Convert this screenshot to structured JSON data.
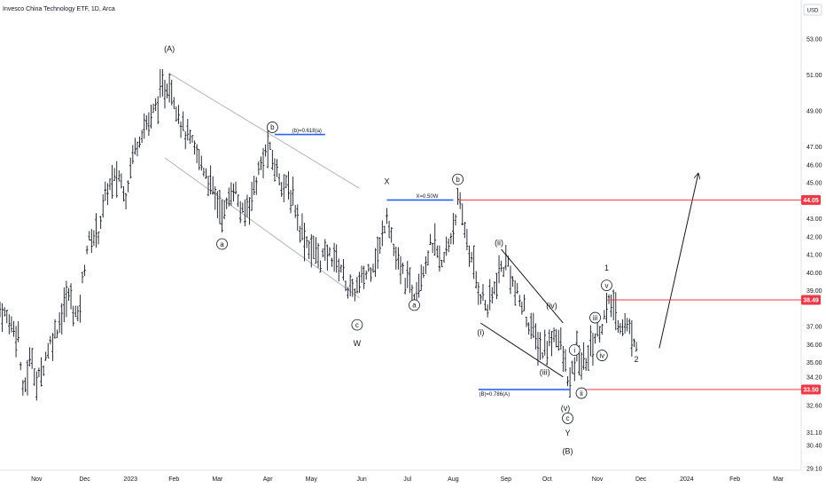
{
  "header": {
    "title": "Invesco China Technology ETF, 1D, Arca"
  },
  "currency": "USD",
  "chart_data": {
    "type": "ohlc",
    "title": "Invesco China Technology ETF, 1D, Arca",
    "ylim": [
      29.5,
      54.0
    ],
    "y_ticks": [
      {
        "v": 53.0,
        "label": "53.00"
      },
      {
        "v": 51.0,
        "label": "51.00"
      },
      {
        "v": 49.0,
        "label": "49.00"
      },
      {
        "v": 47.0,
        "label": "47.00"
      },
      {
        "v": 46.0,
        "label": "46.00"
      },
      {
        "v": 45.0,
        "label": "45.00"
      },
      {
        "v": 43.0,
        "label": "43.00"
      },
      {
        "v": 42.0,
        "label": "42.00"
      },
      {
        "v": 41.0,
        "label": "41.00"
      },
      {
        "v": 40.0,
        "label": "40.00"
      },
      {
        "v": 39.0,
        "label": "39.00"
      },
      {
        "v": 37.0,
        "label": "37.00"
      },
      {
        "v": 36.0,
        "label": "36.00"
      },
      {
        "v": 35.0,
        "label": "35.00"
      },
      {
        "v": 34.2,
        "label": "34.20"
      },
      {
        "v": 32.6,
        "label": "32.60"
      },
      {
        "v": 31.1,
        "label": "31.10"
      },
      {
        "v": 30.4,
        "label": "30.40"
      },
      {
        "v": 29.1,
        "label": "29.10"
      }
    ],
    "x_ticks": [
      {
        "t": 0,
        "label": "Nov"
      },
      {
        "t": 21,
        "label": "Dec"
      },
      {
        "t": 41,
        "label": "2023"
      },
      {
        "t": 60,
        "label": "Feb"
      },
      {
        "t": 79,
        "label": "Mar"
      },
      {
        "t": 101,
        "label": "Apr"
      },
      {
        "t": 120,
        "label": "May"
      },
      {
        "t": 142,
        "label": "Jun"
      },
      {
        "t": 162,
        "label": "Jul"
      },
      {
        "t": 182,
        "label": "Aug"
      },
      {
        "t": 205,
        "label": "Sep"
      },
      {
        "t": 223,
        "label": "Oct"
      },
      {
        "t": 245,
        "label": "Nov"
      },
      {
        "t": 264,
        "label": "Dec"
      },
      {
        "t": 284,
        "label": "2024"
      },
      {
        "t": 305,
        "label": "Feb"
      },
      {
        "t": 324,
        "label": "Mar"
      }
    ],
    "t_range": [
      -16,
      334
    ],
    "waypoints": [
      [
        -16,
        38.0
      ],
      [
        -8,
        36.6
      ],
      [
        -6,
        33.2
      ],
      [
        -4,
        34.4
      ],
      [
        -2,
        35.5
      ],
      [
        0,
        33.7
      ],
      [
        5,
        35.8
      ],
      [
        9,
        37.0
      ],
      [
        14,
        38.8
      ],
      [
        18,
        37.4
      ],
      [
        22,
        41.5
      ],
      [
        27,
        42.4
      ],
      [
        31,
        44.7
      ],
      [
        36,
        45.4
      ],
      [
        39,
        44.4
      ],
      [
        42,
        46.6
      ],
      [
        46,
        48.0
      ],
      [
        50,
        48.6
      ],
      [
        54,
        49.9
      ],
      [
        58,
        50.6
      ],
      [
        61,
        49.4
      ],
      [
        64,
        48.0
      ],
      [
        69,
        46.8
      ],
      [
        74,
        45.6
      ],
      [
        78,
        44.2
      ],
      [
        82,
        43.3
      ],
      [
        86,
        44.9
      ],
      [
        90,
        43.1
      ],
      [
        94,
        44.3
      ],
      [
        97,
        45.6
      ],
      [
        101,
        47.0
      ],
      [
        104,
        45.9
      ],
      [
        109,
        44.7
      ],
      [
        112,
        44.2
      ],
      [
        115,
        42.6
      ],
      [
        119,
        41.5
      ],
      [
        124,
        40.8
      ],
      [
        129,
        41.0
      ],
      [
        133,
        40.3
      ],
      [
        137,
        38.8
      ],
      [
        141,
        39.3
      ],
      [
        146,
        40.4
      ],
      [
        150,
        41.3
      ],
      [
        153,
        43.5
      ],
      [
        157,
        40.6
      ],
      [
        161,
        39.7
      ],
      [
        165,
        38.9
      ],
      [
        169,
        40.4
      ],
      [
        173,
        41.7
      ],
      [
        177,
        40.3
      ],
      [
        181,
        42.1
      ],
      [
        184,
        43.9
      ],
      [
        187,
        42.5
      ],
      [
        190,
        40.6
      ],
      [
        193,
        39.2
      ],
      [
        197,
        38.0
      ],
      [
        200,
        39.1
      ],
      [
        203,
        40.2
      ],
      [
        206,
        40.6
      ],
      [
        209,
        38.9
      ],
      [
        213,
        37.9
      ],
      [
        217,
        36.6
      ],
      [
        221,
        35.6
      ],
      [
        224,
        36.1
      ],
      [
        227,
        36.8
      ],
      [
        230,
        35.3
      ],
      [
        233,
        33.7
      ],
      [
        236,
        35.5
      ],
      [
        239,
        34.8
      ],
      [
        242,
        35.9
      ],
      [
        245,
        36.7
      ],
      [
        248,
        37.5
      ],
      [
        251,
        38.4
      ],
      [
        254,
        37.3
      ],
      [
        258,
        37.0
      ],
      [
        262,
        36.2
      ]
    ],
    "horizontal_levels": [
      {
        "name": "X=0.50W",
        "value": 44.05,
        "color": "#2962ff",
        "label": "X=0.50W"
      },
      {
        "name": "(b)=0.618(a)",
        "value": 47.7,
        "color": "#2962ff",
        "label": "(b)=0.618(a)"
      },
      {
        "name": "(B)=0.786(A)",
        "value": 33.5,
        "color": "#2962ff",
        "label": "(B)=0.786(A)"
      },
      {
        "name": "resistance-44",
        "value": 44.05,
        "color": "#f23645",
        "badge": "44.05"
      },
      {
        "name": "resistance-38",
        "value": 38.49,
        "color": "#f23645",
        "badge": "38.49"
      },
      {
        "name": "support-33",
        "value": 33.5,
        "color": "#f23645",
        "badge": "33.50"
      }
    ],
    "wave_labels": [
      {
        "text": "(A)",
        "t": 58,
        "v": 52.5,
        "circled": false,
        "size": 11
      },
      {
        "text": "b",
        "t": 103,
        "v": 48.1,
        "circled": true
      },
      {
        "text": "a",
        "t": 81,
        "v": 41.6,
        "circled": true
      },
      {
        "text": "c",
        "t": 140,
        "v": 37.1,
        "circled": true
      },
      {
        "text": "W",
        "t": 140,
        "v": 36.1,
        "circled": false,
        "size": 10
      },
      {
        "text": "X",
        "t": 153,
        "v": 45.1,
        "circled": false,
        "size": 10
      },
      {
        "text": "b",
        "t": 184,
        "v": 45.2,
        "circled": true
      },
      {
        "text": "a",
        "t": 165,
        "v": 38.2,
        "circled": true
      },
      {
        "text": "(ii)",
        "t": 202,
        "v": 41.7,
        "circled": false
      },
      {
        "text": "(iv)",
        "t": 225,
        "v": 38.2,
        "circled": false
      },
      {
        "text": "(i)",
        "t": 194,
        "v": 36.7,
        "circled": false
      },
      {
        "text": "(iii)",
        "t": 222,
        "v": 34.5,
        "circled": false
      },
      {
        "text": "(v)",
        "t": 231,
        "v": 32.5,
        "circled": false
      },
      {
        "text": "c",
        "t": 232,
        "v": 31.9,
        "circled": true
      },
      {
        "text": "Y",
        "t": 232,
        "v": 31.1,
        "circled": false,
        "size": 10
      },
      {
        "text": "(B)",
        "t": 232,
        "v": 30.1,
        "circled": false,
        "size": 10
      },
      {
        "text": "i",
        "t": 235,
        "v": 35.7,
        "circled": true
      },
      {
        "text": "ii",
        "t": 238,
        "v": 33.3,
        "circled": true
      },
      {
        "text": "iii",
        "t": 244,
        "v": 37.5,
        "circled": true
      },
      {
        "text": "iv",
        "t": 247,
        "v": 35.4,
        "circled": true
      },
      {
        "text": "v",
        "t": 249,
        "v": 39.3,
        "circled": true
      },
      {
        "text": "1",
        "t": 249,
        "v": 40.3,
        "circled": false,
        "size": 10
      },
      {
        "text": "2",
        "t": 262,
        "v": 35.2,
        "circled": false,
        "size": 10
      }
    ],
    "trend_lines": [
      {
        "name": "channel-upper",
        "from": [
          58,
          51.1
        ],
        "to": [
          141,
          44.7
        ],
        "color": "#b2b5be"
      },
      {
        "name": "channel-lower",
        "from": [
          56,
          46.4
        ],
        "to": [
          141,
          38.6
        ],
        "color": "#b2b5be"
      },
      {
        "name": "wedge-upper",
        "from": [
          203,
          41.3
        ],
        "to": [
          230,
          37.2
        ],
        "color": "#131722"
      },
      {
        "name": "wedge-lower",
        "from": [
          194,
          37.2
        ],
        "to": [
          230,
          34.2
        ],
        "color": "#131722"
      },
      {
        "name": "projection-arrow",
        "from": [
          272,
          35.8
        ],
        "to": [
          289,
          45.5
        ],
        "color": "#131722",
        "arrow": true
      }
    ]
  }
}
